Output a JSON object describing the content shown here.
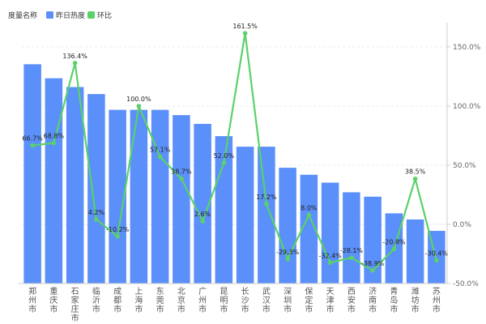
{
  "legend": {
    "title": "度量名称",
    "series": [
      "昨日热度",
      "环比"
    ]
  },
  "colors": {
    "bar": "#5b8ff9",
    "line": "#5ad16a",
    "grid": "#eeeeee",
    "axis": "#cccccc"
  },
  "chart_data": {
    "type": "bar",
    "categories": [
      "郑州市",
      "重庆市",
      "石家庄市",
      "临沂市",
      "成都市",
      "上海市",
      "东莞市",
      "北京市",
      "广州市",
      "昆明市",
      "长沙市",
      "武汉市",
      "深圳市",
      "保定市",
      "天津市",
      "西安市",
      "济南市",
      "青岛市",
      "潍坊市",
      "苏州市"
    ],
    "series": [
      {
        "name": "昨日热度",
        "type": "bar",
        "axis": "left",
        "values": [
          280,
          264,
          254,
          246,
          228,
          228,
          228,
          222,
          212,
          198,
          186,
          186,
          162,
          154,
          145,
          134,
          129,
          110,
          103,
          90
        ]
      },
      {
        "name": "环比",
        "type": "line",
        "axis": "right",
        "values": [
          66.7,
          68.8,
          136.4,
          4.2,
          -10.2,
          100.0,
          57.1,
          38.7,
          2.6,
          52.0,
          161.5,
          17.2,
          -29.3,
          8.0,
          -32.4,
          -28.1,
          -38.9,
          -20.8,
          38.5,
          -30.4
        ],
        "labels": [
          "66.7%",
          "68.8%",
          "136.4%",
          "4.2%",
          "-10.2%",
          "100.0%",
          "57.1%",
          "38.7%",
          "2.6%",
          "52.0%",
          "161.5%",
          "17.2%",
          "-29.3%",
          "8.0%",
          "-32.4%",
          "-28.1%",
          "-38.9%",
          "-20.8%",
          "38.5%",
          "-30.4%"
        ]
      }
    ],
    "y_right": {
      "ticks": [
        150,
        100,
        50,
        0,
        -50
      ],
      "tick_labels": [
        "150.0%",
        "100.0%",
        "50.0%",
        "0.0%",
        "-50.0%"
      ],
      "range": [
        -50,
        165
      ]
    },
    "y_left_range": [
      30,
      320
    ],
    "grid": true,
    "legend_position": "top-left"
  }
}
